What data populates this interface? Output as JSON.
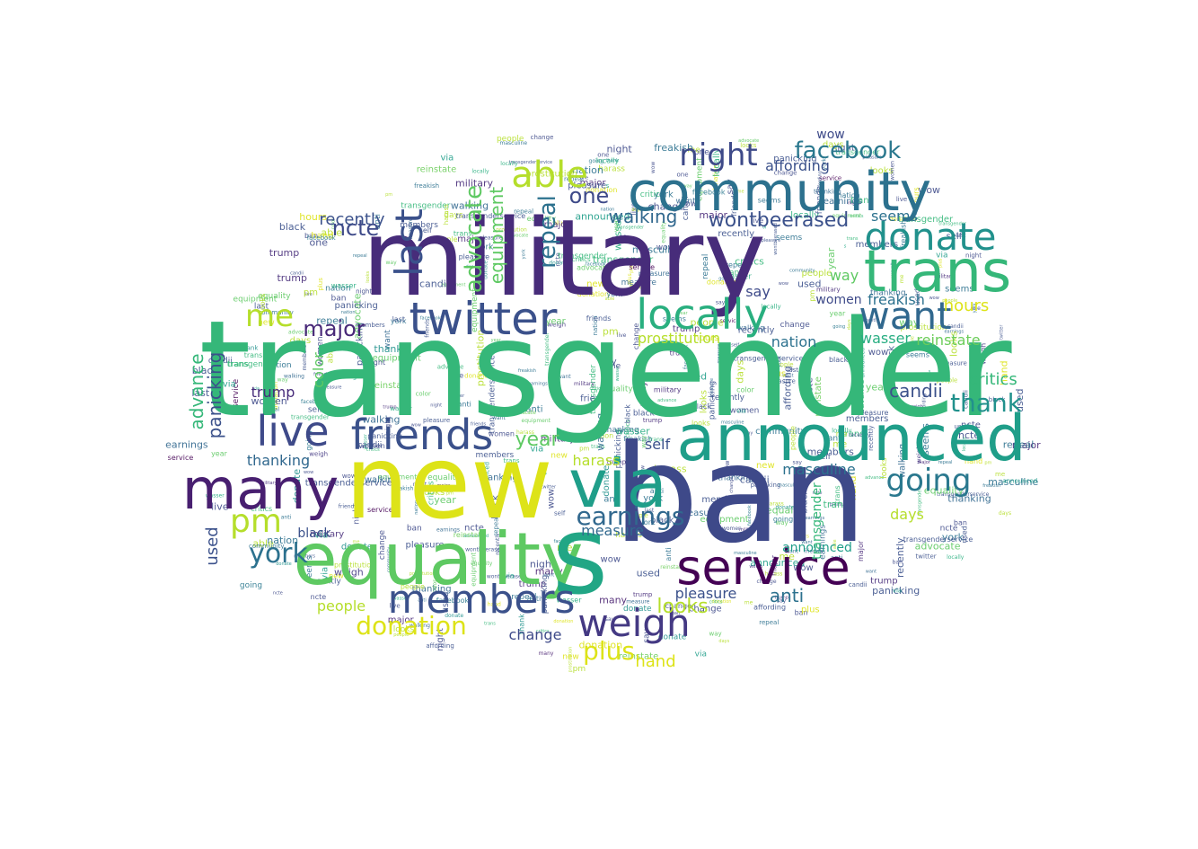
{
  "palette": [
    "#440154",
    "#472c7a",
    "#3b518b",
    "#2c718e",
    "#21908d",
    "#27ad81",
    "#5cc863",
    "#aadc32",
    "#dde318"
  ],
  "words": [
    {
      "text": "transgender",
      "color": "#35b779"
    },
    {
      "text": "military",
      "color": "#472c7a"
    },
    {
      "text": "ban",
      "color": "#3e4989"
    },
    {
      "text": "new",
      "color": "#dde318"
    },
    {
      "text": "equality",
      "color": "#5ec962"
    },
    {
      "text": "s",
      "color": "#21a685"
    },
    {
      "text": "announced",
      "color": "#1f9e89"
    },
    {
      "text": "community",
      "color": "#2c718e"
    },
    {
      "text": "trans",
      "color": "#35b779"
    },
    {
      "text": "twitter",
      "color": "#3b518b"
    },
    {
      "text": "locally",
      "color": "#29af7f"
    },
    {
      "text": "service",
      "color": "#440154"
    },
    {
      "text": "many",
      "color": "#481f70"
    },
    {
      "text": "via",
      "color": "#1f9e89"
    },
    {
      "text": "members",
      "color": "#3b518b"
    },
    {
      "text": "live",
      "color": "#3e4a89"
    },
    {
      "text": "friends",
      "color": "#3b518b"
    },
    {
      "text": "weigh",
      "color": "#443983"
    },
    {
      "text": "donate",
      "color": "#21918c"
    },
    {
      "text": "want",
      "color": "#31688e"
    },
    {
      "text": "able",
      "color": "#b5de2b"
    },
    {
      "text": "last",
      "color": "#3b518b"
    },
    {
      "text": "night",
      "color": "#3e4a89"
    },
    {
      "text": "facebook",
      "color": "#2a788e"
    },
    {
      "text": "pm",
      "color": "#b5de2b"
    },
    {
      "text": "me",
      "color": "#b5de2b"
    },
    {
      "text": "going",
      "color": "#2a788e"
    },
    {
      "text": "thank",
      "color": "#21918c"
    },
    {
      "text": "earnings",
      "color": "#31688e"
    },
    {
      "text": "york",
      "color": "#2c718e"
    },
    {
      "text": "advocate",
      "color": "#5ec962"
    },
    {
      "text": "repeal",
      "color": "#2c718e"
    },
    {
      "text": "equipment",
      "color": "#5ec962"
    },
    {
      "text": "donation",
      "color": "#dde318"
    },
    {
      "text": "wontbeerased",
      "color": "#3b518b"
    },
    {
      "text": "major",
      "color": "#482878"
    },
    {
      "text": "plus",
      "color": "#dde318"
    },
    {
      "text": "one",
      "color": "#3e4a89"
    },
    {
      "text": "year",
      "color": "#5ec962"
    },
    {
      "text": "walking",
      "color": "#31688e"
    },
    {
      "text": "advance",
      "color": "#35b779"
    },
    {
      "text": "ncte",
      "color": "#3e4a89"
    },
    {
      "text": "recently",
      "color": "#3b518b"
    },
    {
      "text": "wow",
      "color": "#3e4a89"
    },
    {
      "text": "affording",
      "color": "#3b518b"
    },
    {
      "text": "critics",
      "color": "#35b779"
    },
    {
      "text": "hours",
      "color": "#dde318"
    },
    {
      "text": "reinstate",
      "color": "#6ccd5a"
    },
    {
      "text": "wasser",
      "color": "#27ad81"
    },
    {
      "text": "prostitution",
      "color": "#b5de2b"
    },
    {
      "text": "panicking",
      "color": "#3b518b"
    },
    {
      "text": "candii",
      "color": "#3b518b"
    },
    {
      "text": "anti",
      "color": "#2c718e"
    },
    {
      "text": "looks",
      "color": "#b5de2b"
    },
    {
      "text": "pleasure",
      "color": "#3b518b"
    },
    {
      "text": "masculine",
      "color": "#2c718e"
    },
    {
      "text": "thanking",
      "color": "#31688e"
    },
    {
      "text": "trump",
      "color": "#472c7a"
    },
    {
      "text": "color",
      "color": "#5ec962"
    },
    {
      "text": "black",
      "color": "#3b518b"
    },
    {
      "text": "people",
      "color": "#b5de2b"
    },
    {
      "text": "hand",
      "color": "#dde318"
    },
    {
      "text": "change",
      "color": "#3e4a89"
    },
    {
      "text": "measure",
      "color": "#31688e"
    },
    {
      "text": "seems",
      "color": "#2c718e"
    },
    {
      "text": "harass",
      "color": "#b5de2b"
    },
    {
      "text": "freakish",
      "color": "#2c718e"
    },
    {
      "text": "women",
      "color": "#3e4a89"
    },
    {
      "text": "nation",
      "color": "#2c718e"
    },
    {
      "text": "days",
      "color": "#b5de2b"
    },
    {
      "text": "self",
      "color": "#3b518b"
    },
    {
      "text": "way",
      "color": "#5ec962"
    },
    {
      "text": "say",
      "color": "#3e4a89"
    },
    {
      "text": "used",
      "color": "#3b518b"
    },
    {
      "text": "transgenderservice",
      "color": "#3b518b"
    }
  ]
}
